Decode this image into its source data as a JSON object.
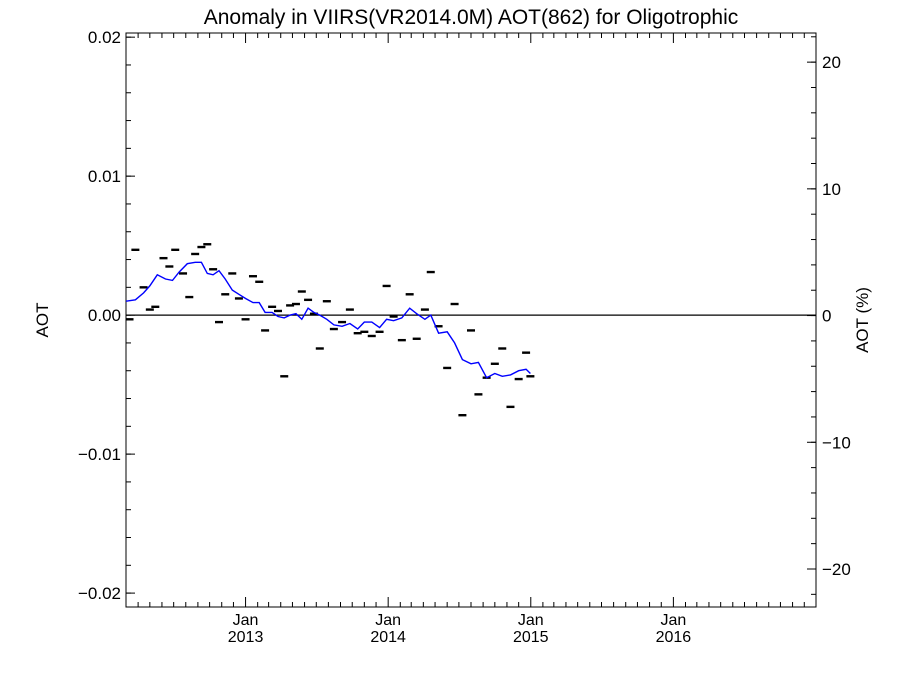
{
  "chart_data": {
    "type": "scatter",
    "title": "Anomaly in VIIRS(VR2014.0M) AOT(862) for Oligotrophic",
    "ylabel_left": "AOT",
    "ylabel_right": "AOT (%)",
    "ylim_left": [
      -0.021,
      0.0203
    ],
    "yticks_left": [
      {
        "value": 0.02,
        "label": "0.02"
      },
      {
        "value": 0.01,
        "label": "0.01"
      },
      {
        "value": 0.0,
        "label": "0.00"
      },
      {
        "value": -0.01,
        "label": "−0.01"
      },
      {
        "value": -0.02,
        "label": "−0.02"
      }
    ],
    "ylim_right": [
      -23.0,
      22.3
    ],
    "yticks_right": [
      {
        "value": 20,
        "label": "20"
      },
      {
        "value": 10,
        "label": "10"
      },
      {
        "value": 0,
        "label": "0"
      },
      {
        "value": -10,
        "label": "−10"
      },
      {
        "value": -20,
        "label": "−20"
      }
    ],
    "xlim": [
      "2012-03-01",
      "2016-12-31"
    ],
    "xticks": [
      {
        "date": "2013-01-01",
        "month": "Jan",
        "year": "2013"
      },
      {
        "date": "2014-01-01",
        "month": "Jan",
        "year": "2014"
      },
      {
        "date": "2015-01-01",
        "month": "Jan",
        "year": "2015"
      },
      {
        "date": "2016-01-01",
        "month": "Jan",
        "year": "2016"
      }
    ],
    "reference_line": 0.0,
    "series": [
      {
        "type": "scatter",
        "marker": "dash",
        "color": "#000000",
        "points": [
          {
            "x": "2012-03-10",
            "y": -0.0003
          },
          {
            "x": "2012-03-25",
            "y": 0.0047
          },
          {
            "x": "2012-04-15",
            "y": 0.002
          },
          {
            "x": "2012-05-01",
            "y": 0.0004
          },
          {
            "x": "2012-05-15",
            "y": 0.0006
          },
          {
            "x": "2012-06-05",
            "y": 0.0041
          },
          {
            "x": "2012-06-20",
            "y": 0.0035
          },
          {
            "x": "2012-07-05",
            "y": 0.0047
          },
          {
            "x": "2012-07-25",
            "y": 0.003
          },
          {
            "x": "2012-08-10",
            "y": 0.0013
          },
          {
            "x": "2012-08-25",
            "y": 0.0044
          },
          {
            "x": "2012-09-10",
            "y": 0.0049
          },
          {
            "x": "2012-09-25",
            "y": 0.0051
          },
          {
            "x": "2012-10-10",
            "y": 0.0033
          },
          {
            "x": "2012-10-25",
            "y": -0.0005
          },
          {
            "x": "2012-11-10",
            "y": 0.0015
          },
          {
            "x": "2012-11-28",
            "y": 0.003
          },
          {
            "x": "2012-12-15",
            "y": 0.0012
          },
          {
            "x": "2013-01-01",
            "y": -0.0003
          },
          {
            "x": "2013-01-20",
            "y": 0.0028
          },
          {
            "x": "2013-02-05",
            "y": 0.0024
          },
          {
            "x": "2013-02-20",
            "y": -0.0011
          },
          {
            "x": "2013-03-10",
            "y": 0.0006
          },
          {
            "x": "2013-03-25",
            "y": 0.0003
          },
          {
            "x": "2013-04-10",
            "y": -0.0044
          },
          {
            "x": "2013-04-25",
            "y": 0.0007
          },
          {
            "x": "2013-05-10",
            "y": 0.0008
          },
          {
            "x": "2013-05-25",
            "y": 0.0017
          },
          {
            "x": "2013-06-10",
            "y": 0.0011
          },
          {
            "x": "2013-06-25",
            "y": 0.0001
          },
          {
            "x": "2013-07-10",
            "y": -0.0024
          },
          {
            "x": "2013-07-28",
            "y": 0.001
          },
          {
            "x": "2013-08-15",
            "y": -0.001
          },
          {
            "x": "2013-09-05",
            "y": -0.0005
          },
          {
            "x": "2013-09-25",
            "y": 0.0004
          },
          {
            "x": "2013-10-15",
            "y": -0.0013
          },
          {
            "x": "2013-11-01",
            "y": -0.0012
          },
          {
            "x": "2013-11-20",
            "y": -0.0015
          },
          {
            "x": "2013-12-10",
            "y": -0.0012
          },
          {
            "x": "2013-12-28",
            "y": 0.0021
          },
          {
            "x": "2014-01-15",
            "y": -0.0001
          },
          {
            "x": "2014-02-05",
            "y": -0.0018
          },
          {
            "x": "2014-02-25",
            "y": 0.0015
          },
          {
            "x": "2014-03-15",
            "y": -0.0017
          },
          {
            "x": "2014-04-05",
            "y": 0.0004
          },
          {
            "x": "2014-04-20",
            "y": 0.0031
          },
          {
            "x": "2014-05-10",
            "y": -0.0008
          },
          {
            "x": "2014-06-01",
            "y": -0.0038
          },
          {
            "x": "2014-06-20",
            "y": 0.0008
          },
          {
            "x": "2014-07-10",
            "y": -0.0072
          },
          {
            "x": "2014-08-01",
            "y": -0.0011
          },
          {
            "x": "2014-08-20",
            "y": -0.0057
          },
          {
            "x": "2014-09-10",
            "y": -0.0045
          },
          {
            "x": "2014-10-01",
            "y": -0.0035
          },
          {
            "x": "2014-10-20",
            "y": -0.0024
          },
          {
            "x": "2014-11-10",
            "y": -0.0066
          },
          {
            "x": "2014-12-01",
            "y": -0.0046
          },
          {
            "x": "2014-12-20",
            "y": -0.0027
          },
          {
            "x": "2014-12-31",
            "y": -0.0044
          }
        ]
      },
      {
        "type": "line",
        "color": "#0000ff",
        "points": [
          {
            "x": "2012-03-01",
            "y": 0.001
          },
          {
            "x": "2012-03-25",
            "y": 0.0011
          },
          {
            "x": "2012-04-15",
            "y": 0.0016
          },
          {
            "x": "2012-05-01",
            "y": 0.0021
          },
          {
            "x": "2012-05-20",
            "y": 0.0029
          },
          {
            "x": "2012-06-10",
            "y": 0.0026
          },
          {
            "x": "2012-06-28",
            "y": 0.0025
          },
          {
            "x": "2012-07-15",
            "y": 0.0031
          },
          {
            "x": "2012-08-05",
            "y": 0.0037
          },
          {
            "x": "2012-08-25",
            "y": 0.0038
          },
          {
            "x": "2012-09-10",
            "y": 0.0038
          },
          {
            "x": "2012-09-25",
            "y": 0.003
          },
          {
            "x": "2012-10-10",
            "y": 0.0029
          },
          {
            "x": "2012-10-25",
            "y": 0.0032
          },
          {
            "x": "2012-11-10",
            "y": 0.0026
          },
          {
            "x": "2012-11-28",
            "y": 0.0018
          },
          {
            "x": "2012-12-15",
            "y": 0.0015
          },
          {
            "x": "2013-01-01",
            "y": 0.0012
          },
          {
            "x": "2013-01-20",
            "y": 0.0009
          },
          {
            "x": "2013-02-05",
            "y": 0.0009
          },
          {
            "x": "2013-02-20",
            "y": 0.0002
          },
          {
            "x": "2013-03-10",
            "y": 0.0002
          },
          {
            "x": "2013-03-25",
            "y": -0.0001
          },
          {
            "x": "2013-04-10",
            "y": -0.0002
          },
          {
            "x": "2013-04-25",
            "y": 0.0
          },
          {
            "x": "2013-05-10",
            "y": 0.0001
          },
          {
            "x": "2013-05-25",
            "y": -0.0003
          },
          {
            "x": "2013-06-10",
            "y": 0.0005
          },
          {
            "x": "2013-06-25",
            "y": 0.0002
          },
          {
            "x": "2013-07-10",
            "y": 0.0
          },
          {
            "x": "2013-07-28",
            "y": -0.0003
          },
          {
            "x": "2013-08-15",
            "y": -0.0007
          },
          {
            "x": "2013-09-05",
            "y": -0.0008
          },
          {
            "x": "2013-09-25",
            "y": -0.0006
          },
          {
            "x": "2013-10-15",
            "y": -0.001
          },
          {
            "x": "2013-11-01",
            "y": -0.0005
          },
          {
            "x": "2013-11-20",
            "y": -0.0005
          },
          {
            "x": "2013-12-10",
            "y": -0.0009
          },
          {
            "x": "2013-12-28",
            "y": -0.0003
          },
          {
            "x": "2014-01-15",
            "y": -0.0004
          },
          {
            "x": "2014-02-05",
            "y": -0.0002
          },
          {
            "x": "2014-02-25",
            "y": 0.0005
          },
          {
            "x": "2014-03-15",
            "y": 0.0001
          },
          {
            "x": "2014-04-05",
            "y": -0.0003
          },
          {
            "x": "2014-04-20",
            "y": 0.0
          },
          {
            "x": "2014-05-10",
            "y": -0.0013
          },
          {
            "x": "2014-06-01",
            "y": -0.0012
          },
          {
            "x": "2014-06-20",
            "y": -0.002
          },
          {
            "x": "2014-07-10",
            "y": -0.0032
          },
          {
            "x": "2014-08-01",
            "y": -0.0035
          },
          {
            "x": "2014-08-20",
            "y": -0.0034
          },
          {
            "x": "2014-09-10",
            "y": -0.0045
          },
          {
            "x": "2014-10-01",
            "y": -0.0042
          },
          {
            "x": "2014-10-20",
            "y": -0.0044
          },
          {
            "x": "2014-11-10",
            "y": -0.0043
          },
          {
            "x": "2014-12-01",
            "y": -0.004
          },
          {
            "x": "2014-12-20",
            "y": -0.0039
          },
          {
            "x": "2014-12-31",
            "y": -0.0042
          }
        ]
      }
    ],
    "grid": false,
    "legend": "none"
  }
}
